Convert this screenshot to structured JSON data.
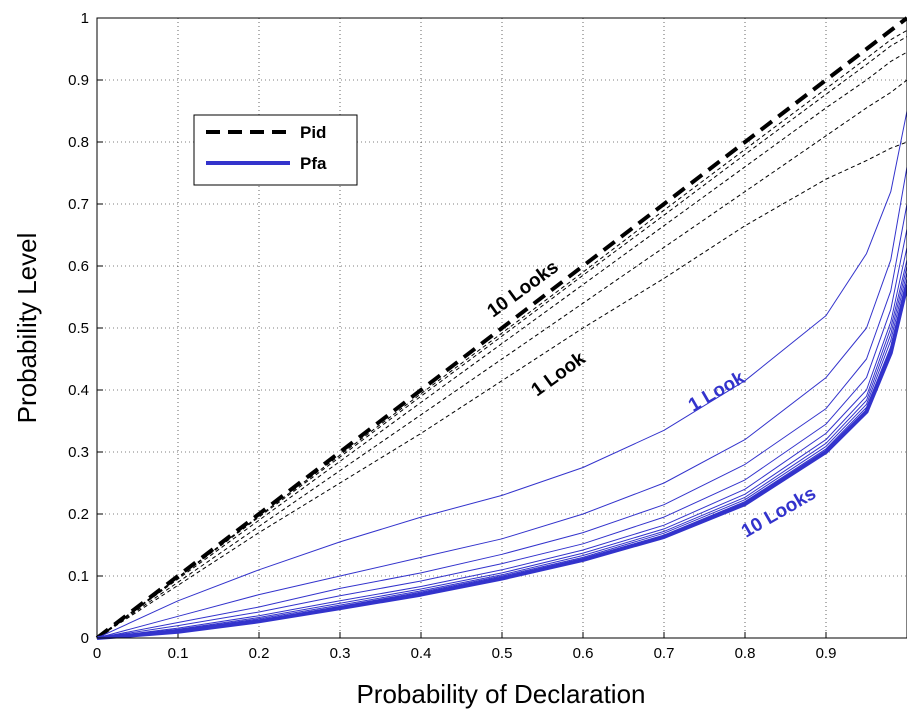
{
  "chart_data": {
    "type": "line",
    "xlabel": "Probability of Declaration",
    "ylabel": "Probability Level",
    "xlim": [
      0,
      1
    ],
    "ylim": [
      0,
      1
    ],
    "grid": true,
    "legend_position": "top-left",
    "x_ticks": [
      "0",
      "0.1",
      "0.2",
      "0.3",
      "0.4",
      "0.5",
      "0.6",
      "0.7",
      "0.8",
      "0.9"
    ],
    "y_ticks": [
      "0",
      "0.1",
      "0.2",
      "0.3",
      "0.4",
      "0.5",
      "0.6",
      "0.7",
      "0.8",
      "0.9",
      "1"
    ],
    "legend": [
      {
        "name": "Pid",
        "style": "dashed",
        "color": "#000000"
      },
      {
        "name": "Pfa",
        "style": "solid",
        "color": "#3333cc"
      }
    ],
    "annotations": [
      {
        "text": "10 Looks",
        "color": "#000000"
      },
      {
        "text": "1 Look",
        "color": "#000000"
      },
      {
        "text": "1 Look",
        "color": "#3333cc"
      },
      {
        "text": "10 Looks",
        "color": "#3333cc"
      }
    ],
    "colors": {
      "pid": "#000000",
      "pfa": "#3333cc"
    },
    "x": [
      0,
      0.1,
      0.2,
      0.3,
      0.4,
      0.5,
      0.6,
      0.7,
      0.8,
      0.9,
      0.95,
      0.98,
      1.0
    ],
    "series": [
      {
        "group": "Pid",
        "looks": 1,
        "values": [
          0,
          0.085,
          0.17,
          0.25,
          0.33,
          0.415,
          0.5,
          0.58,
          0.665,
          0.74,
          0.77,
          0.79,
          0.8
        ]
      },
      {
        "group": "Pid",
        "looks": 2,
        "values": [
          0,
          0.09,
          0.18,
          0.27,
          0.36,
          0.45,
          0.54,
          0.63,
          0.72,
          0.81,
          0.855,
          0.88,
          0.9
        ]
      },
      {
        "group": "Pid",
        "looks": 3,
        "values": [
          0,
          0.095,
          0.19,
          0.285,
          0.38,
          0.475,
          0.57,
          0.665,
          0.76,
          0.855,
          0.9,
          0.93,
          0.945
        ]
      },
      {
        "group": "Pid",
        "looks": 4,
        "values": [
          0,
          0.097,
          0.195,
          0.292,
          0.39,
          0.487,
          0.585,
          0.682,
          0.78,
          0.877,
          0.925,
          0.955,
          0.97
        ]
      },
      {
        "group": "Pid",
        "looks": 5,
        "values": [
          0,
          0.098,
          0.197,
          0.295,
          0.394,
          0.492,
          0.59,
          0.69,
          0.788,
          0.886,
          0.935,
          0.965,
          0.98
        ]
      },
      {
        "group": "Pid",
        "looks": 10,
        "values": [
          0,
          0.1,
          0.2,
          0.3,
          0.4,
          0.5,
          0.6,
          0.7,
          0.8,
          0.9,
          0.95,
          0.98,
          1.0
        ]
      },
      {
        "group": "Pfa",
        "looks": 1,
        "values": [
          0,
          0.06,
          0.11,
          0.155,
          0.195,
          0.23,
          0.275,
          0.335,
          0.415,
          0.52,
          0.62,
          0.72,
          0.85
        ]
      },
      {
        "group": "Pfa",
        "looks": 2,
        "values": [
          0,
          0.035,
          0.07,
          0.1,
          0.13,
          0.16,
          0.2,
          0.25,
          0.32,
          0.42,
          0.5,
          0.61,
          0.76
        ]
      },
      {
        "group": "Pfa",
        "looks": 3,
        "values": [
          0,
          0.025,
          0.05,
          0.08,
          0.105,
          0.135,
          0.17,
          0.215,
          0.28,
          0.37,
          0.45,
          0.56,
          0.7
        ]
      },
      {
        "group": "Pfa",
        "looks": 4,
        "values": [
          0,
          0.02,
          0.042,
          0.068,
          0.092,
          0.12,
          0.152,
          0.195,
          0.255,
          0.345,
          0.42,
          0.53,
          0.66
        ]
      },
      {
        "group": "Pfa",
        "looks": 5,
        "values": [
          0,
          0.016,
          0.036,
          0.06,
          0.083,
          0.11,
          0.142,
          0.182,
          0.24,
          0.33,
          0.4,
          0.51,
          0.63
        ]
      },
      {
        "group": "Pfa",
        "looks": 6,
        "values": [
          0,
          0.014,
          0.033,
          0.056,
          0.079,
          0.105,
          0.137,
          0.176,
          0.232,
          0.32,
          0.39,
          0.5,
          0.61
        ]
      },
      {
        "group": "Pfa",
        "looks": 7,
        "values": [
          0,
          0.013,
          0.031,
          0.053,
          0.076,
          0.102,
          0.133,
          0.172,
          0.227,
          0.314,
          0.383,
          0.49,
          0.6
        ]
      },
      {
        "group": "Pfa",
        "looks": 8,
        "values": [
          0,
          0.012,
          0.029,
          0.051,
          0.074,
          0.1,
          0.13,
          0.169,
          0.223,
          0.309,
          0.377,
          0.48,
          0.59
        ]
      },
      {
        "group": "Pfa",
        "looks": 9,
        "values": [
          0,
          0.011,
          0.028,
          0.05,
          0.072,
          0.098,
          0.128,
          0.166,
          0.22,
          0.305,
          0.372,
          0.47,
          0.58
        ]
      },
      {
        "group": "Pfa",
        "looks": 10,
        "values": [
          0,
          0.01,
          0.027,
          0.048,
          0.07,
          0.096,
          0.126,
          0.163,
          0.216,
          0.3,
          0.365,
          0.46,
          0.57
        ]
      }
    ]
  }
}
